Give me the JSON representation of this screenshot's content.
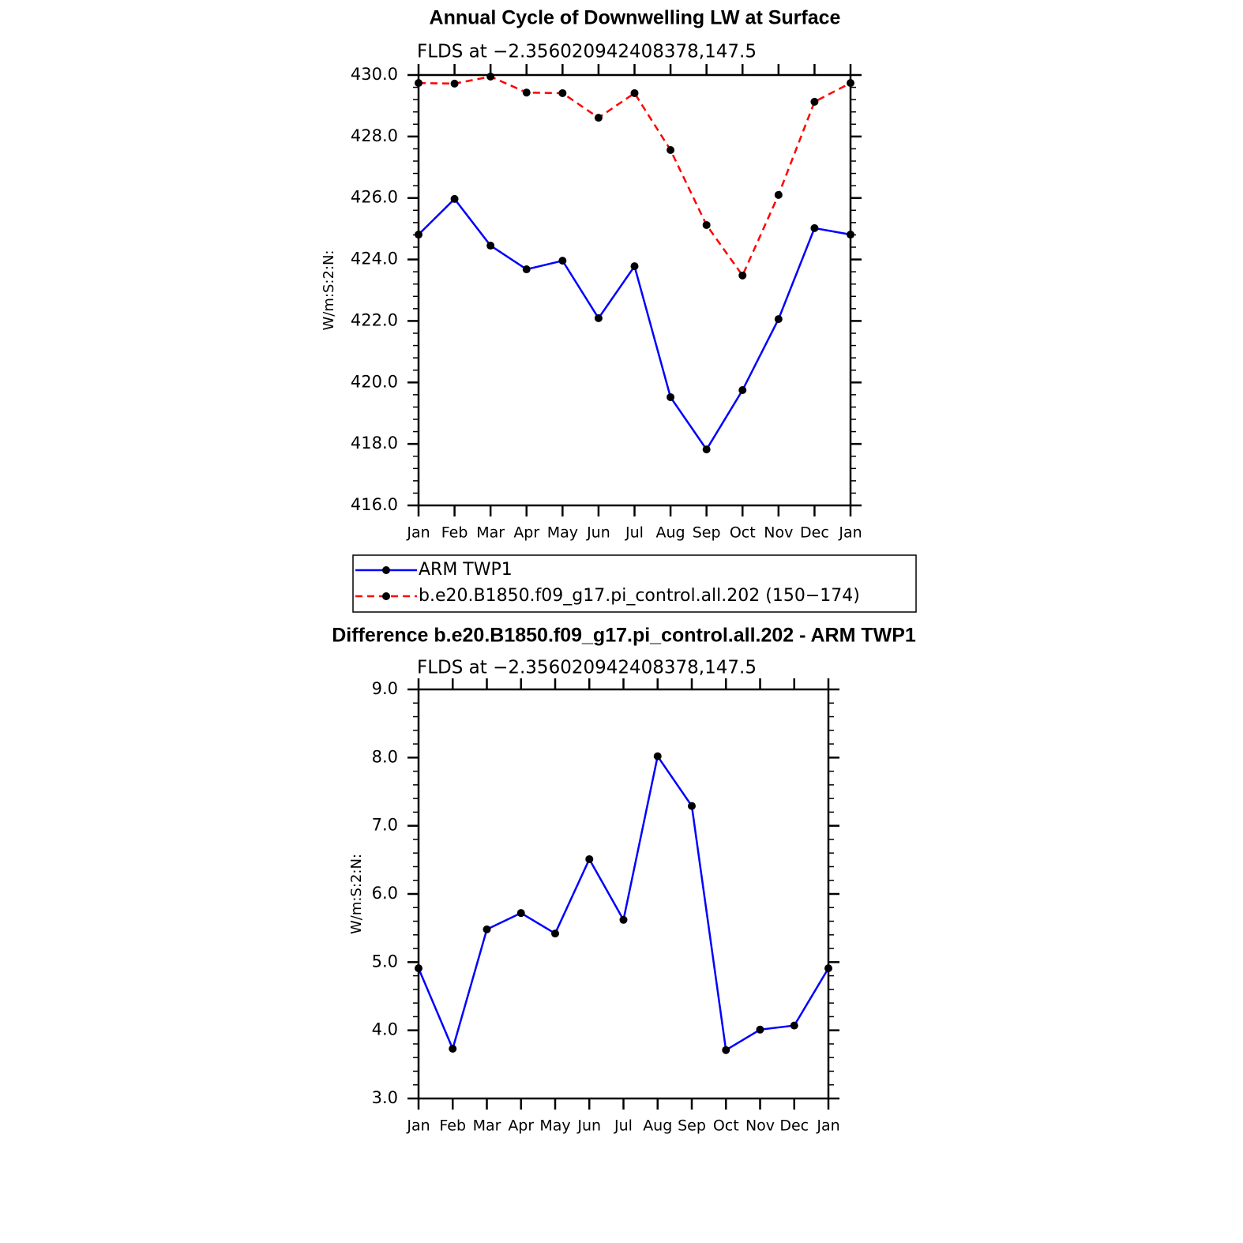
{
  "chart_data": [
    {
      "type": "line",
      "title": "Annual Cycle of Downwelling LW at Surface",
      "subtitle": "FLDS at −2.356020942408378,147.5",
      "ylabel": "W/m:S:2:N:",
      "categories": [
        "Jan",
        "Feb",
        "Mar",
        "Apr",
        "May",
        "Jun",
        "Jul",
        "Aug",
        "Sep",
        "Oct",
        "Nov",
        "Dec",
        "Jan"
      ],
      "series": [
        {
          "name": "ARM TWP1",
          "color": "#0000ff",
          "linestyle": "solid",
          "marker_color": "#000000",
          "values": [
            424.81,
            425.97,
            424.45,
            423.68,
            423.96,
            422.09,
            423.78,
            419.52,
            417.82,
            419.75,
            422.06,
            425.02,
            424.81
          ]
        },
        {
          "name": "b.e20.B1850.f09_g17.pi_control.all.202 (150−174)",
          "color": "#ff0000",
          "linestyle": "dashed",
          "marker_color": "#000000",
          "values": [
            429.74,
            429.72,
            429.95,
            429.43,
            429.41,
            428.61,
            429.41,
            427.56,
            425.12,
            423.48,
            426.1,
            429.13,
            429.74
          ]
        }
      ],
      "ylim": [
        416,
        430
      ],
      "yticks": [
        {
          "value": 416,
          "label": "416.0"
        },
        {
          "value": 418,
          "label": "418.0"
        },
        {
          "value": 420,
          "label": "420.0"
        },
        {
          "value": 422,
          "label": "422.0"
        },
        {
          "value": 424,
          "label": "424.0"
        },
        {
          "value": 426,
          "label": "426.0"
        },
        {
          "value": 428,
          "label": "428.0"
        },
        {
          "value": 430,
          "label": "430.0"
        }
      ],
      "legend": "bottom"
    },
    {
      "type": "line",
      "title": "Difference b.e20.B1850.f09_g17.pi_control.all.202 - ARM TWP1",
      "subtitle": "FLDS at −2.356020942408378,147.5",
      "ylabel": "W/m:S:2:N:",
      "categories": [
        "Jan",
        "Feb",
        "Mar",
        "Apr",
        "May",
        "Jun",
        "Jul",
        "Aug",
        "Sep",
        "Oct",
        "Nov",
        "Dec",
        "Jan"
      ],
      "series": [
        {
          "color": "#0000ff",
          "linestyle": "solid",
          "marker_color": "#000000",
          "values": [
            4.91,
            3.73,
            5.48,
            5.72,
            5.42,
            6.51,
            5.62,
            8.02,
            7.29,
            3.71,
            4.01,
            4.07,
            4.91
          ]
        }
      ],
      "ylim": [
        3,
        9
      ],
      "yticks": [
        {
          "value": 3,
          "label": "3.0"
        },
        {
          "value": 4,
          "label": "4.0"
        },
        {
          "value": 5,
          "label": "5.0"
        },
        {
          "value": 6,
          "label": "6.0"
        },
        {
          "value": 7,
          "label": "7.0"
        },
        {
          "value": 8,
          "label": "8.0"
        },
        {
          "value": 9,
          "label": "9.0"
        }
      ]
    }
  ]
}
